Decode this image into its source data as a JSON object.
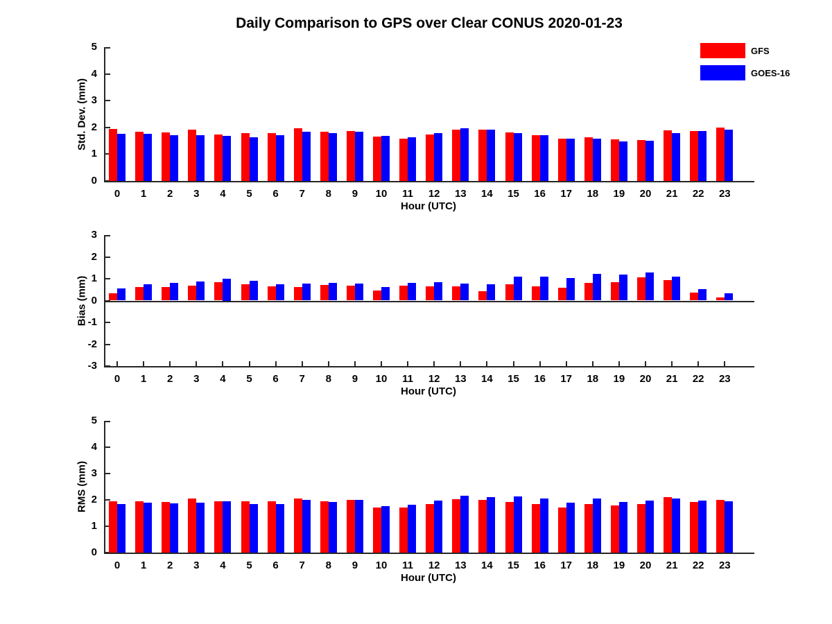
{
  "title": "Daily Comparison to GPS over Clear CONUS 2020-01-23",
  "colors": {
    "gfs": "#ff0000",
    "goes16": "#0000ff",
    "axis": "#262626",
    "text": "#000000"
  },
  "legend": {
    "entries": [
      {
        "label": "GFS",
        "color": "#ff0000"
      },
      {
        "label": "GOES-16",
        "color": "#0000ff"
      }
    ]
  },
  "chart_data": [
    {
      "type": "bar",
      "title": "Daily Comparison to GPS over Clear CONUS 2020-01-23",
      "ylabel": "Std. Dev. (mm)",
      "xlabel": "Hour (UTC)",
      "ylim": [
        0,
        5
      ],
      "yticks": [
        0,
        1,
        2,
        3,
        4,
        5
      ],
      "grid": false,
      "legend_position": "upper-right-outside",
      "categories": [
        "0",
        "1",
        "2",
        "3",
        "4",
        "5",
        "6",
        "7",
        "8",
        "9",
        "10",
        "11",
        "12",
        "13",
        "14",
        "15",
        "16",
        "17",
        "18",
        "19",
        "20",
        "21",
        "22",
        "23"
      ],
      "series": [
        {
          "name": "GFS",
          "color": "#ff0000",
          "values": [
            1.95,
            1.85,
            1.81,
            1.93,
            1.74,
            1.8,
            1.8,
            1.97,
            1.84,
            1.87,
            1.67,
            1.58,
            1.73,
            1.91,
            1.93,
            1.81,
            1.72,
            1.57,
            1.64,
            1.56,
            1.53,
            1.88,
            1.86,
            1.99
          ]
        },
        {
          "name": "GOES-16",
          "color": "#0000ff",
          "values": [
            1.77,
            1.76,
            1.71,
            1.7,
            1.68,
            1.62,
            1.72,
            1.85,
            1.78,
            1.83,
            1.68,
            1.62,
            1.78,
            1.97,
            1.92,
            1.78,
            1.72,
            1.57,
            1.59,
            1.47,
            1.5,
            1.79,
            1.87,
            1.91
          ]
        }
      ]
    },
    {
      "type": "bar",
      "title": "",
      "ylabel": "Bias (mm)",
      "xlabel": "Hour (UTC)",
      "ylim": [
        -3,
        3
      ],
      "yticks": [
        -3,
        -2,
        -1,
        0,
        1,
        2,
        3
      ],
      "grid": false,
      "categories": [
        "0",
        "1",
        "2",
        "3",
        "4",
        "5",
        "6",
        "7",
        "8",
        "9",
        "10",
        "11",
        "12",
        "13",
        "14",
        "15",
        "16",
        "17",
        "18",
        "19",
        "20",
        "21",
        "22",
        "23"
      ],
      "series": [
        {
          "name": "GFS",
          "color": "#ff0000",
          "values": [
            0.32,
            0.63,
            0.63,
            0.68,
            0.85,
            0.76,
            0.64,
            0.63,
            0.71,
            0.69,
            0.47,
            0.69,
            0.64,
            0.65,
            0.42,
            0.76,
            0.64,
            0.6,
            0.81,
            0.85,
            1.05,
            0.93,
            0.38,
            0.13
          ]
        },
        {
          "name": "GOES-16",
          "color": "#0000ff",
          "values": [
            0.56,
            0.74,
            0.8,
            0.87,
            1.0,
            0.9,
            0.74,
            0.79,
            0.81,
            0.79,
            0.61,
            0.81,
            0.84,
            0.79,
            0.74,
            1.11,
            1.08,
            1.02,
            1.23,
            1.2,
            1.28,
            1.1,
            0.51,
            0.34
          ]
        }
      ]
    },
    {
      "type": "bar",
      "title": "",
      "ylabel": "RMS (mm)",
      "xlabel": "Hour (UTC)",
      "ylim": [
        0,
        5
      ],
      "yticks": [
        0,
        1,
        2,
        3,
        4,
        5
      ],
      "grid": false,
      "categories": [
        "0",
        "1",
        "2",
        "3",
        "4",
        "5",
        "6",
        "7",
        "8",
        "9",
        "10",
        "11",
        "12",
        "13",
        "14",
        "15",
        "16",
        "17",
        "18",
        "19",
        "20",
        "21",
        "22",
        "23"
      ],
      "series": [
        {
          "name": "GFS",
          "color": "#ff0000",
          "values": [
            1.96,
            1.94,
            1.91,
            2.04,
            1.94,
            1.96,
            1.94,
            2.04,
            1.96,
            1.99,
            1.72,
            1.7,
            1.83,
            2.02,
            1.99,
            1.93,
            1.84,
            1.7,
            1.84,
            1.79,
            1.84,
            2.1,
            1.93,
            2.01
          ]
        },
        {
          "name": "GOES-16",
          "color": "#0000ff",
          "values": [
            1.84,
            1.89,
            1.86,
            1.89,
            1.96,
            1.84,
            1.84,
            1.99,
            1.92,
            1.99,
            1.77,
            1.81,
            1.97,
            2.15,
            2.1,
            2.12,
            2.05,
            1.89,
            2.04,
            1.92,
            1.97,
            2.06,
            1.97,
            1.96
          ]
        }
      ]
    }
  ]
}
